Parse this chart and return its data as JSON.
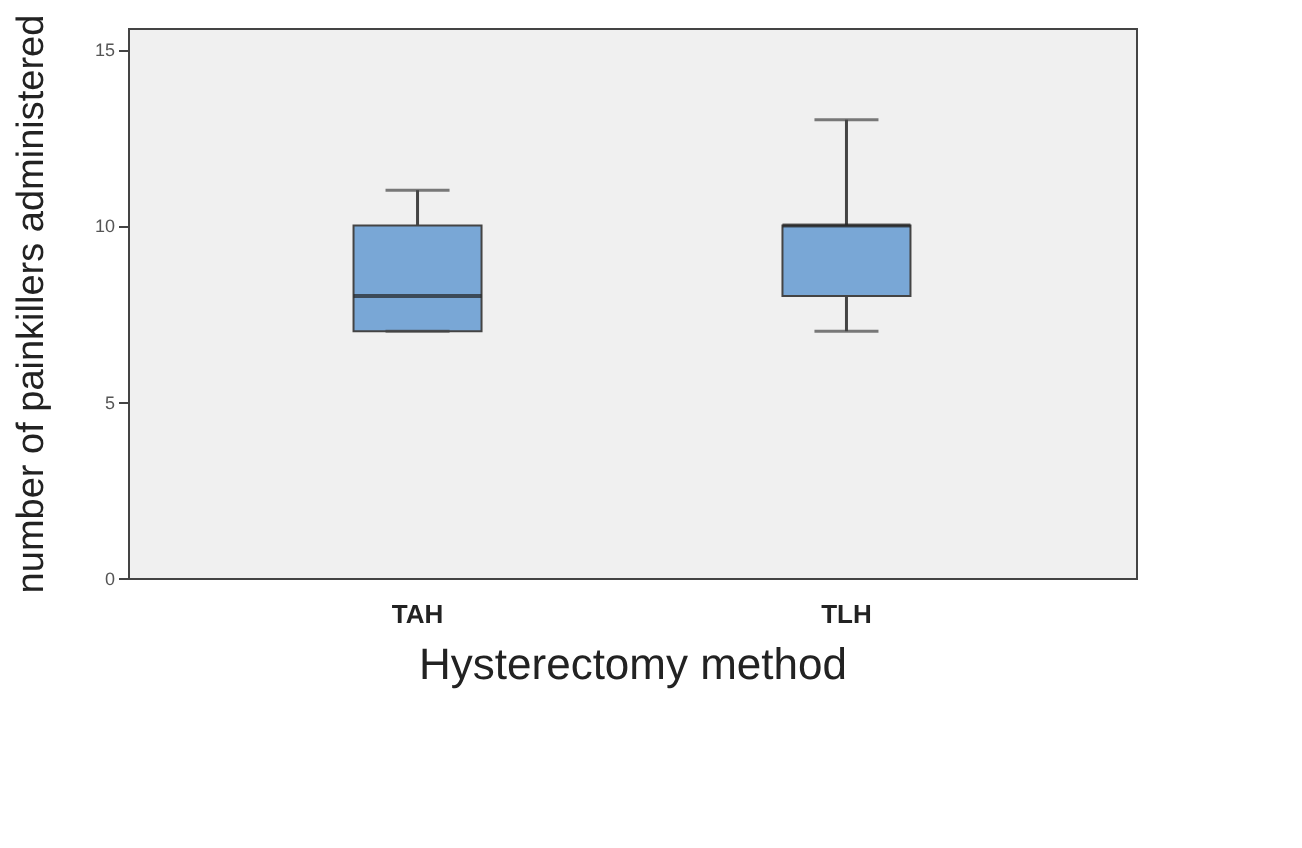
{
  "chart_data": {
    "type": "box",
    "xlabel": "Hysterectomy method",
    "ylabel": "number of painkillers administered",
    "categories": [
      "TAH",
      "TLH"
    ],
    "boxes": [
      {
        "low": 7,
        "q1": 7,
        "median": 8,
        "q3": 10,
        "high": 11
      },
      {
        "low": 7,
        "q1": 8,
        "median": 10,
        "q3": 10,
        "high": 13
      }
    ],
    "color": "#79a7d6",
    "ylim": [
      0,
      15.6
    ],
    "yticks": [
      0,
      5,
      10,
      15
    ],
    "grid": false
  }
}
